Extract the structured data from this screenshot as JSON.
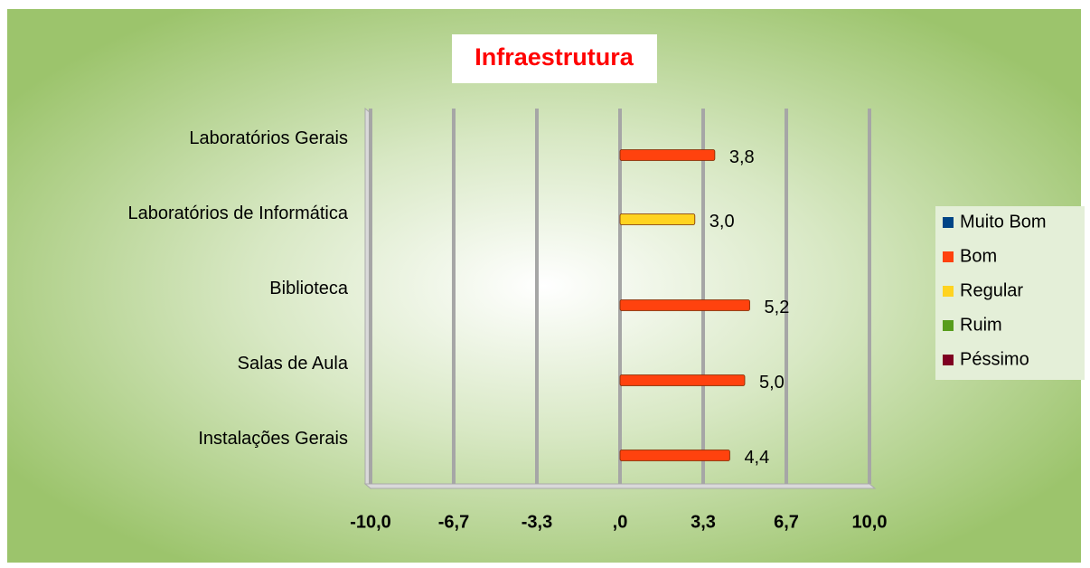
{
  "chart_data": {
    "type": "bar",
    "orientation": "horizontal",
    "title": "Infraestrutura",
    "categories": [
      "Laboratórios Gerais",
      "Laboratórios de Informática",
      "Biblioteca",
      "Salas de Aula",
      "Instalações Gerais"
    ],
    "series": [
      {
        "name": "Muito Bom",
        "color": "#004586",
        "values": [
          null,
          null,
          null,
          null,
          null
        ]
      },
      {
        "name": "Bom",
        "color": "#ff420e",
        "values": [
          3.8,
          null,
          5.2,
          5.0,
          4.4
        ],
        "value_labels": [
          "3,8",
          null,
          "5,2",
          "5,0",
          "4,4"
        ]
      },
      {
        "name": "Regular",
        "color": "#ffd320",
        "values": [
          null,
          3.0,
          null,
          null,
          null
        ],
        "value_labels": [
          null,
          "3,0",
          null,
          null,
          null
        ]
      },
      {
        "name": "Ruim",
        "color": "#579d1c",
        "values": [
          null,
          null,
          null,
          null,
          null
        ]
      },
      {
        "name": "Péssimo",
        "color": "#7e0021",
        "values": [
          null,
          null,
          null,
          null,
          null
        ]
      }
    ],
    "xlim": [
      -10,
      10
    ],
    "xticks": [
      {
        "value": -10,
        "label": "-10,0"
      },
      {
        "value": -6.667,
        "label": "-6,7"
      },
      {
        "value": -3.333,
        "label": "-3,3"
      },
      {
        "value": 0,
        "label": ",0"
      },
      {
        "value": 3.333,
        "label": "3,3"
      },
      {
        "value": 6.667,
        "label": "6,7"
      },
      {
        "value": 10,
        "label": "10,0"
      }
    ],
    "grid": true,
    "legend": "right"
  }
}
